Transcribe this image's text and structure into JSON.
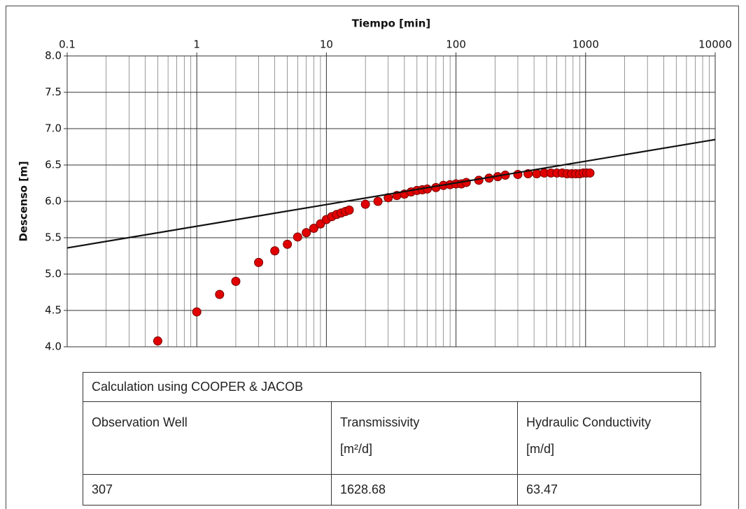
{
  "chart_data": {
    "type": "scatter",
    "x_label": "Tiempo [min]",
    "y_label": "Descenso [m]",
    "log_x": true,
    "grid": true,
    "xlim": [
      0.1,
      10000
    ],
    "ylim": [
      4,
      8
    ],
    "xticks": [
      0.1,
      1,
      10,
      100,
      1000,
      10000
    ],
    "yticks": [
      {
        "value": 4,
        "label": "4.0"
      },
      {
        "value": 4.5,
        "label": "4.5"
      },
      {
        "value": 5,
        "label": "5.0"
      },
      {
        "value": 5.5,
        "label": "5.5"
      },
      {
        "value": 6,
        "label": "6.0"
      },
      {
        "value": 6.5,
        "label": "6.5"
      },
      {
        "value": 7,
        "label": "7.0"
      },
      {
        "value": 7.5,
        "label": "7.5"
      },
      {
        "value": 8,
        "label": "8.0"
      }
    ],
    "series": [
      {
        "type": "scatter",
        "color": "#e00000",
        "x": [
          0.5,
          1,
          1.5,
          2,
          3,
          4,
          5,
          6,
          7,
          8,
          9,
          10,
          11,
          12,
          13,
          14,
          15,
          20,
          25,
          30,
          35,
          40,
          45,
          50,
          55,
          60,
          70,
          80,
          90,
          100,
          110,
          120,
          150,
          180,
          210,
          240,
          300,
          360,
          420,
          480,
          540,
          600,
          660,
          720,
          780,
          840,
          900,
          960,
          1020,
          1080
        ],
        "values": [
          4.08,
          4.48,
          4.72,
          4.9,
          5.16,
          5.32,
          5.41,
          5.51,
          5.57,
          5.63,
          5.69,
          5.75,
          5.79,
          5.82,
          5.84,
          5.86,
          5.88,
          5.96,
          6.0,
          6.05,
          6.08,
          6.1,
          6.13,
          6.15,
          6.16,
          6.17,
          6.19,
          6.22,
          6.23,
          6.24,
          6.24,
          6.26,
          6.29,
          6.32,
          6.34,
          6.36,
          6.37,
          6.38,
          6.38,
          6.39,
          6.39,
          6.39,
          6.39,
          6.38,
          6.38,
          6.38,
          6.38,
          6.39,
          6.39,
          6.39
        ]
      },
      {
        "type": "line",
        "color": "#111111",
        "x": [
          0.1,
          10000
        ],
        "values": [
          5.36,
          6.85
        ]
      }
    ]
  },
  "table": {
    "title": "Calculation using COOPER & JACOB",
    "header": [
      {
        "name": "Observation Well"
      },
      {
        "name": "Transmissivity",
        "unit": "[m²/d]"
      },
      {
        "name": "Hydraulic Conductivity",
        "unit": "[m/d]"
      }
    ],
    "rows": [
      [
        "307",
        "1628.68",
        "63.47"
      ]
    ]
  }
}
